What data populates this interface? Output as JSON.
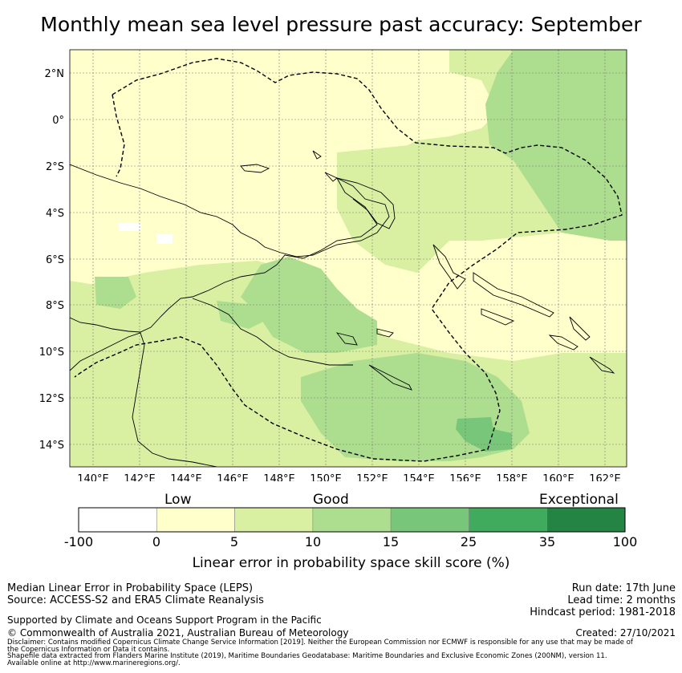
{
  "title": "Monthly mean sea level pressure past accuracy: September",
  "map": {
    "lat_labels": [
      "2°N",
      "0°",
      "2°S",
      "4°S",
      "6°S",
      "8°S",
      "10°S",
      "12°S",
      "14°S"
    ],
    "lon_labels": [
      "140°E",
      "142°E",
      "144°E",
      "146°E",
      "148°E",
      "150°E",
      "152°E",
      "154°E",
      "156°E",
      "158°E",
      "160°E",
      "162°E"
    ],
    "colors": {
      "low": "#ffffcc",
      "good_low": "#d9f0a3",
      "good_high": "#addd8e",
      "very_good": "#78c679",
      "high": "#41ab5d",
      "exceptional": "#238443",
      "none": "#ffffff"
    }
  },
  "legend": {
    "categories": [
      "Low",
      "Good",
      "Exceptional"
    ],
    "ticks": [
      "-100",
      "0",
      "5",
      "10",
      "15",
      "25",
      "35",
      "100"
    ],
    "colors": [
      "#ffffff",
      "#ffffcc",
      "#d9f0a3",
      "#addd8e",
      "#78c679",
      "#41ab5d",
      "#238443"
    ],
    "title": "Linear error in probability space skill score (%)"
  },
  "footer": {
    "method": "Median Linear Error in Probability Space (LEPS)",
    "source": "Source: ACCESS-S2 and ERA5 Climate Reanalysis",
    "run_date": "Run date: 17th June",
    "lead_time": "Lead time: 2 months",
    "hindcast": "Hindcast period: 1981-2018",
    "support": "Supported by Climate and Oceans Support Program in the Pacific",
    "copyright": "© Commonwealth of Australia 2021, Australian Bureau of Meteorology",
    "created": "Created: 27/10/2021",
    "disclaimer_1": "Disclaimer: Contains modified Copernicus Climate Change Service Information [2019]. Neither the European Commission nor ECMWF is responsible for any use that may be made of",
    "disclaimer_2": "the Copernicus Information or Data it contains.",
    "shapefile_1": "Shapefile data extracted from Flanders Marine Institute (2019), Maritime Boundaries Geodatabase: Maritime Boundaries and Exclusive Economic Zones (200NM), version 11.",
    "shapefile_2": "Available online at http://www.marineregions.org/."
  }
}
